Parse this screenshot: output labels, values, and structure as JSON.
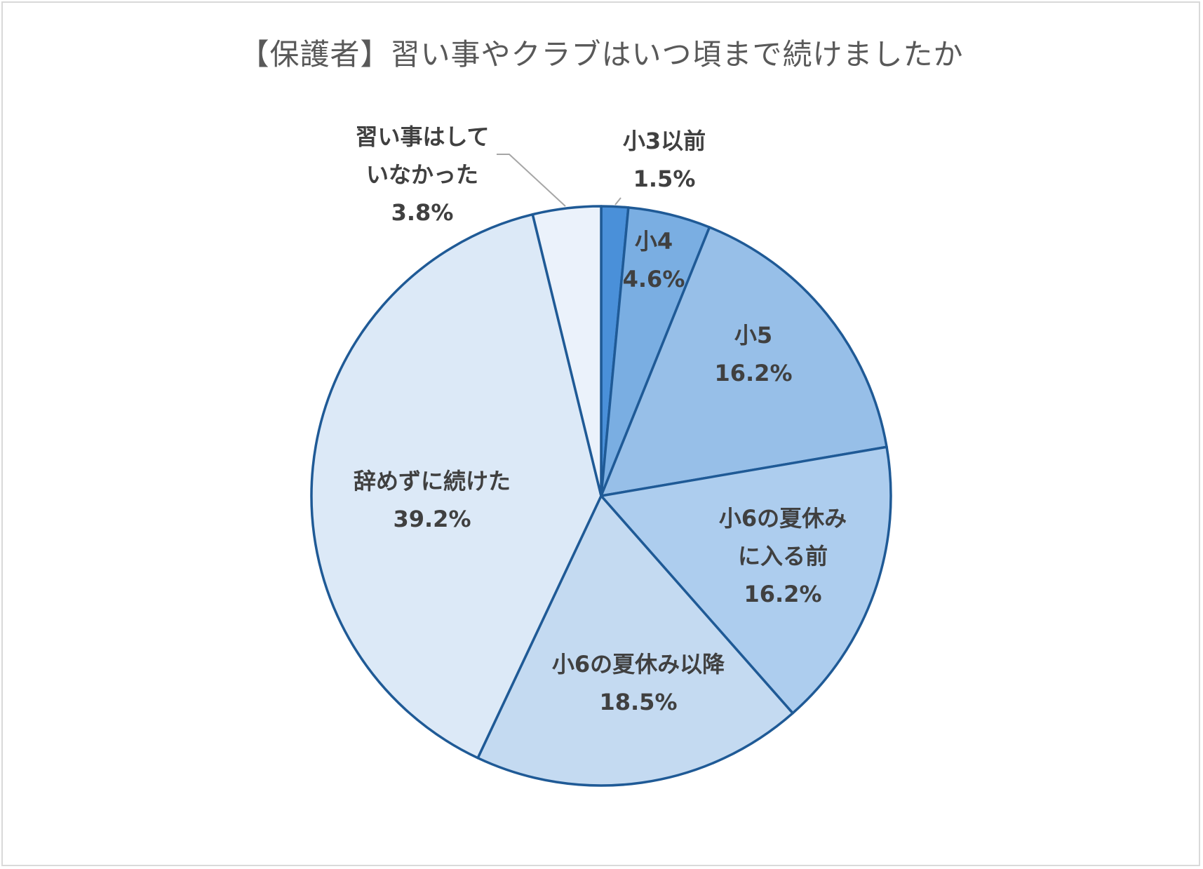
{
  "chart_data": {
    "type": "pie",
    "title": "【保護者】習い事やクラブはいつ頃まで続けましたか",
    "slices": [
      {
        "label": "小3以前",
        "value": 1.5,
        "value_label": "1.5%",
        "color": "#4a90d9"
      },
      {
        "label": "小4",
        "value": 4.6,
        "value_label": "4.6%",
        "color": "#7aaee2"
      },
      {
        "label": "小5",
        "value": 16.2,
        "value_label": "16.2%",
        "color": "#97bfe8"
      },
      {
        "label": "小6の夏休みに入る前",
        "value": 16.2,
        "value_label": "16.2%",
        "color": "#adcdee"
      },
      {
        "label": "小6の夏休み以降",
        "value": 18.5,
        "value_label": "18.5%",
        "color": "#c4daf1"
      },
      {
        "label": "辞めずに続けた",
        "value": 39.2,
        "value_label": "39.2%",
        "color": "#dce9f7"
      },
      {
        "label": "習い事はしていなかった",
        "value": 3.8,
        "value_label": "3.8%",
        "color": "#ebf2fb"
      }
    ],
    "border_color": "#1f5a96",
    "start_angle": "12 o'clock",
    "direction": "clockwise",
    "legend": "none"
  }
}
